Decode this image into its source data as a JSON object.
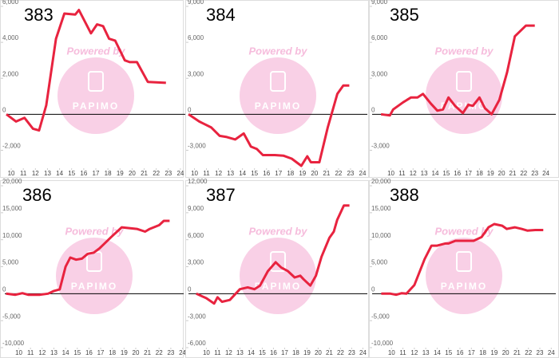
{
  "chart_data": [
    {
      "type": "line",
      "title": "383",
      "annotations": [
        "Powered by",
        "PAPIMO"
      ],
      "color": "#e8233f",
      "x": [
        9.6,
        10.4,
        11.1,
        11.8,
        12.3,
        12.9,
        13.7,
        14.4,
        15.3,
        15.6,
        16.6,
        17.1,
        17.6,
        18.1,
        18.6,
        19.4,
        19.8,
        20.4,
        21.3,
        22.8
      ],
      "values": [
        0,
        -400,
        -200,
        -800,
        -900,
        500,
        4200,
        5600,
        5550,
        5800,
        4500,
        5000,
        4900,
        4200,
        4100,
        3000,
        2900,
        2900,
        1800,
        1750
      ],
      "xlim": [
        9.6,
        24.4
      ],
      "ylim": [
        -3000,
        6000
      ],
      "xticks": [
        10,
        11,
        12,
        13,
        14,
        15,
        16,
        17,
        18,
        19,
        20,
        21,
        22,
        23,
        24
      ],
      "yticks": [
        {
          "value": -2000,
          "label": "-2,000"
        },
        0,
        {
          "value": 2000,
          "label": "2,000"
        },
        {
          "value": 4000,
          "label": "4,000"
        },
        {
          "value": 6000,
          "label": "6,000"
        }
      ]
    },
    {
      "type": "line",
      "title": "384",
      "annotations": [
        "Powered by",
        "PAPIMO"
      ],
      "color": "#e8233f",
      "x": [
        9.5,
        10.4,
        11.4,
        12.1,
        12.7,
        13.4,
        14.1,
        14.7,
        15.2,
        15.7,
        16.7,
        17.4,
        18.1,
        18.5,
        18.9,
        19.4,
        19.7,
        20.4,
        21.1,
        21.9,
        22.4,
        22.9
      ],
      "values": [
        0,
        -600,
        -1100,
        -1800,
        -1900,
        -2100,
        -1600,
        -2700,
        -2900,
        -3400,
        -3400,
        -3450,
        -3700,
        -4000,
        -4300,
        -3500,
        -4000,
        -4000,
        -1100,
        1700,
        2400,
        2400
      ],
      "xlim": [
        9.5,
        24.4
      ],
      "ylim": [
        -4500,
        9000
      ],
      "xticks": [
        10,
        11,
        12,
        13,
        14,
        15,
        16,
        17,
        18,
        19,
        20,
        21,
        22,
        23,
        24
      ],
      "yticks": [
        {
          "value": -3000,
          "label": "-3,000"
        },
        0,
        {
          "value": 3000,
          "label": "3,000"
        },
        {
          "value": 6000,
          "label": "6,000"
        },
        {
          "value": 9000,
          "label": "9,000"
        }
      ]
    },
    {
      "type": "line",
      "title": "385",
      "annotations": [
        "Powered by",
        "PAPIMO"
      ],
      "color": "#e8233f",
      "x": [
        9.1,
        9.9,
        10.2,
        11.1,
        11.8,
        12.4,
        12.9,
        13.6,
        14.2,
        14.7,
        15.2,
        15.8,
        16.5,
        17.0,
        17.4,
        18.0,
        18.5,
        19.1,
        19.8,
        20.5,
        21.2,
        22.2,
        23.0
      ],
      "values": [
        0,
        -100,
        400,
        1000,
        1400,
        1400,
        1700,
        900,
        300,
        400,
        1400,
        700,
        100,
        800,
        700,
        1400,
        500,
        0,
        1200,
        3500,
        6500,
        7400,
        7400
      ],
      "xlim": [
        8.3,
        24.9
      ],
      "ylim": [
        -4500,
        9000
      ],
      "xticks": [
        10,
        11,
        12,
        13,
        14,
        15,
        16,
        17,
        18,
        19,
        20,
        21,
        22,
        23,
        24
      ],
      "yticks": [
        {
          "value": -3000,
          "label": "-3,000"
        },
        0,
        {
          "value": 3000,
          "label": "3,000"
        },
        {
          "value": 6000,
          "label": "6,000"
        },
        {
          "value": 9000,
          "label": "9,000"
        }
      ]
    },
    {
      "type": "line",
      "title": "386",
      "annotations": [
        "Powered by",
        "PAPIMO"
      ],
      "color": "#e8233f",
      "x": [
        8.9,
        9.7,
        10.3,
        10.8,
        11.8,
        12.5,
        13.0,
        13.5,
        14.0,
        14.4,
        14.9,
        15.4,
        15.9,
        16.4,
        16.9,
        17.9,
        18.8,
        20.1,
        20.8,
        21.2,
        22.0,
        22.4,
        22.9
      ],
      "values": [
        0,
        -200,
        100,
        -200,
        -200,
        0,
        500,
        800,
        5000,
        6700,
        6300,
        6500,
        7400,
        7600,
        8400,
        10500,
        12300,
        12000,
        11500,
        12000,
        12700,
        13500,
        13500
      ],
      "xlim": [
        8.8,
        24.1
      ],
      "ylim": [
        -10000,
        20000
      ],
      "xticks": [
        10,
        11,
        12,
        13,
        14,
        15,
        16,
        17,
        18,
        19,
        20,
        21,
        22,
        23,
        24
      ],
      "yticks": [
        {
          "value": -10000,
          "label": "-10,000"
        },
        {
          "value": -5000,
          "label": "-5,000"
        },
        0,
        {
          "value": 5000,
          "label": "5,000"
        },
        {
          "value": 10000,
          "label": "10,000"
        },
        {
          "value": 15000,
          "label": "15,000"
        },
        {
          "value": 20000,
          "label": "20,000"
        }
      ]
    },
    {
      "type": "line",
      "title": "387",
      "annotations": [
        "Powered by",
        "PAPIMO"
      ],
      "color": "#e8233f",
      "x": [
        9.1,
        10.0,
        10.7,
        11.0,
        11.4,
        12.1,
        13.0,
        13.7,
        14.3,
        14.8,
        15.5,
        16.2,
        16.7,
        17.3,
        17.9,
        18.4,
        18.7,
        19.3,
        19.8,
        20.3,
        21.0,
        21.4,
        21.7,
        22.3,
        22.8
      ],
      "values": [
        0,
        -500,
        -1100,
        -400,
        -900,
        -700,
        500,
        700,
        500,
        900,
        2500,
        3500,
        2900,
        2500,
        1800,
        2000,
        1600,
        900,
        2000,
        4100,
        6200,
        6900,
        8200,
        9800,
        9800
      ],
      "xlim": [
        8.4,
        24.4
      ],
      "ylim": [
        -6000,
        12000
      ],
      "xticks": [
        10,
        11,
        12,
        13,
        14,
        15,
        16,
        17,
        18,
        19,
        20,
        21,
        22,
        23,
        24
      ],
      "yticks": [
        {
          "value": -6000,
          "label": "-6,000"
        },
        {
          "value": -3000,
          "label": "-3,000"
        },
        0,
        {
          "value": 3000,
          "label": "3,000"
        },
        {
          "value": 6000,
          "label": "6,000"
        },
        {
          "value": 9000,
          "label": "9,000"
        },
        {
          "value": 12000,
          "label": "12,000"
        }
      ]
    },
    {
      "type": "line",
      "title": "388",
      "annotations": [
        "Powered by",
        "PAPIMO"
      ],
      "color": "#e8233f",
      "x": [
        9.1,
        9.9,
        10.4,
        10.9,
        11.3,
        12.0,
        12.9,
        13.5,
        14.0,
        14.7,
        15.0,
        15.6,
        16.3,
        17.2,
        17.9,
        18.5,
        19.0,
        19.7,
        20.1,
        20.8,
        21.4,
        21.9,
        22.6,
        23.3
      ],
      "values": [
        0,
        0,
        -200,
        100,
        0,
        1600,
        6400,
        8900,
        8900,
        9300,
        9300,
        9800,
        9800,
        9800,
        10500,
        12300,
        12900,
        12600,
        12000,
        12300,
        12000,
        11700,
        11800,
        11800
      ],
      "xlim": [
        8.3,
        24.4
      ],
      "ylim": [
        -10000,
        20000
      ],
      "xticks": [
        10,
        11,
        12,
        13,
        14,
        15,
        16,
        17,
        18,
        19,
        20,
        21,
        22,
        23,
        24
      ],
      "yticks": [
        {
          "value": -10000,
          "label": "-10,000"
        },
        {
          "value": -5000,
          "label": "-5,000"
        },
        0,
        {
          "value": 5000,
          "label": "5,000"
        },
        {
          "value": 10000,
          "label": "10,000"
        },
        {
          "value": 15000,
          "label": "15,000"
        },
        {
          "value": 20000,
          "label": "20,000"
        }
      ]
    }
  ]
}
